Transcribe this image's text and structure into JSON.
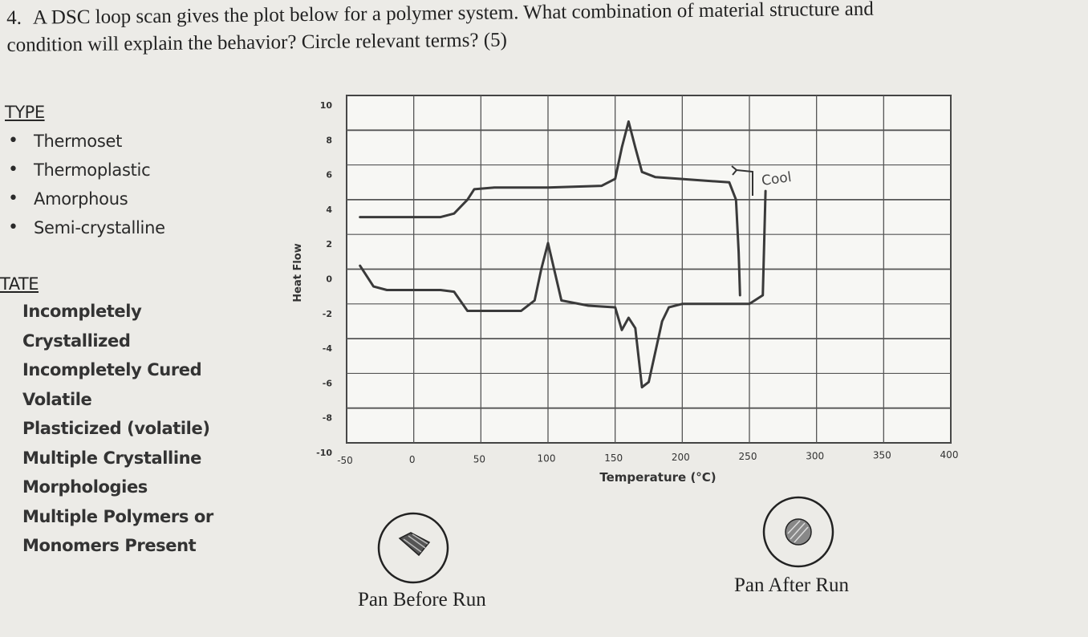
{
  "question": {
    "number": "4.",
    "text_line1": "A DSC loop scan gives the plot below for a polymer system.  What combination of material structure and",
    "text_line2": "condition will explain the behavior? Circle relevant terms? (5)"
  },
  "type_section": {
    "heading": "TYPE",
    "items": [
      {
        "bullet": "•",
        "label": "Thermoset"
      },
      {
        "bullet": "•",
        "label": "Thermoplastic"
      },
      {
        "bullet": "•",
        "label": "Amorphous"
      },
      {
        "bullet": "•",
        "label": "Semi-crystalline"
      }
    ]
  },
  "state_section": {
    "heading": "TATE",
    "items": [
      "Incompletely",
      "Crystallized",
      "Incompletely Cured",
      "Volatile",
      "Plasticized (volatile)",
      "Multiple Crystalline",
      "Morphologies",
      "Multiple Polymers or",
      "Monomers Present"
    ]
  },
  "chart_data": {
    "type": "line",
    "title": "",
    "xlabel": "Temperature (°C)",
    "ylabel": "Heat Flow",
    "xlim": [
      -50,
      400
    ],
    "ylim": [
      -10,
      10
    ],
    "x_ticks": [
      -50,
      0,
      50,
      100,
      150,
      200,
      250,
      300,
      350,
      400
    ],
    "y_ticks": [
      10,
      8,
      6,
      4,
      2,
      0,
      -2,
      -4,
      -6,
      -8,
      -10
    ],
    "grid": true,
    "annotation": "Cool",
    "series": [
      {
        "x": [
          -40,
          -10,
          20,
          30,
          40,
          45,
          60,
          100,
          140,
          150,
          155,
          160,
          165,
          170,
          180,
          235,
          240,
          242,
          243
        ],
        "y": [
          3.0,
          3.0,
          3.0,
          3.2,
          4.0,
          4.6,
          4.7,
          4.7,
          4.8,
          5.2,
          7.0,
          8.5,
          7.0,
          5.6,
          5.3,
          5.0,
          4.0,
          1.0,
          -1.5
        ]
      },
      {
        "x": [
          -40,
          -30,
          -20,
          0,
          20,
          30,
          40,
          60,
          80,
          90,
          95,
          100,
          110,
          130,
          150,
          155,
          160,
          165,
          170,
          175,
          185,
          190,
          200,
          250,
          260,
          262
        ],
        "y": [
          0.2,
          -1.0,
          -1.2,
          -1.2,
          -1.2,
          -1.3,
          -2.4,
          -2.4,
          -2.4,
          -1.8,
          0.0,
          1.5,
          -1.8,
          -2.1,
          -2.2,
          -3.5,
          -2.8,
          -3.4,
          -6.8,
          -6.5,
          -3.0,
          -2.2,
          -2.0,
          -2.0,
          -1.5,
          4.5
        ]
      }
    ]
  },
  "pans": {
    "before_label": "Pan Before Run",
    "after_label": "Pan After Run"
  }
}
